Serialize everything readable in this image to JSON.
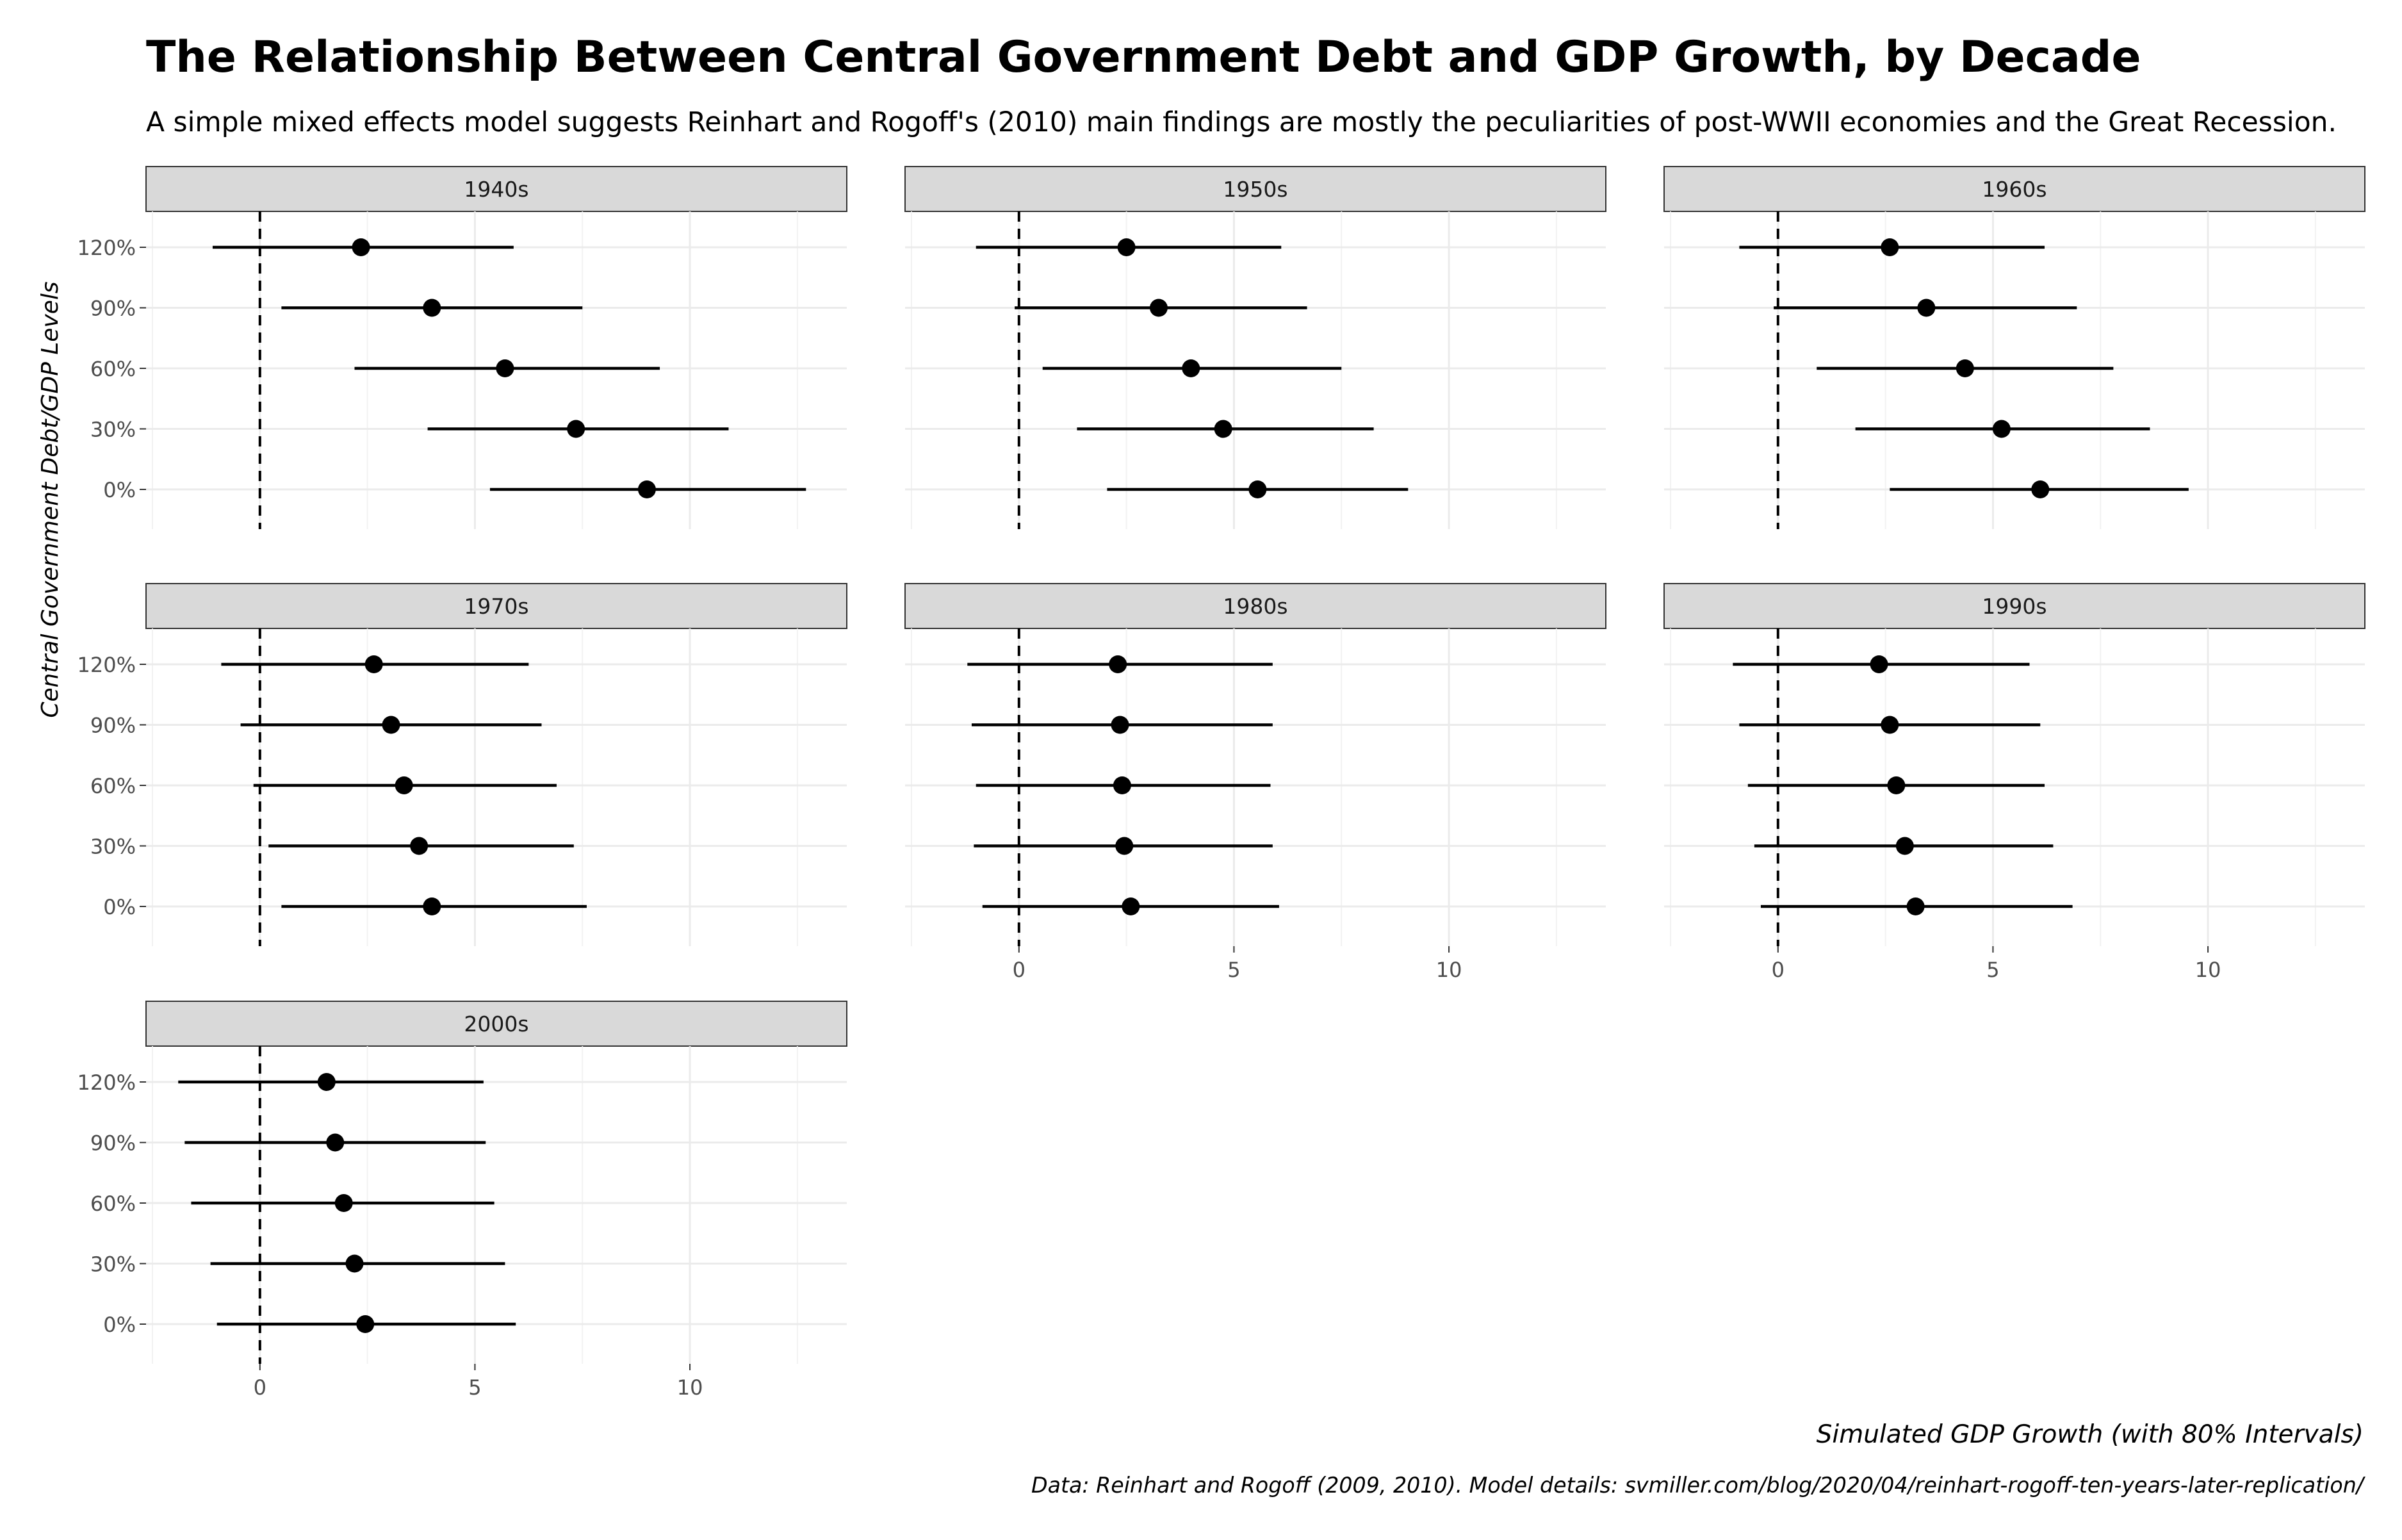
{
  "title": "The Relationship Between Central Government Debt and GDP Growth, by Decade",
  "subtitle": "A simple mixed effects model suggests Reinhart and Rogoff's (2010) main findings are mostly the peculiarities of post-WWII economies and the Great Recession.",
  "ylabel": "Central Government Debt/GDP Levels",
  "xlabel": "Simulated GDP Growth (with 80% Intervals)",
  "caption": "Data: Reinhart and Rogoff (2009, 2010). Model details: svmiller.com/blog/2020/04/reinhart-rogoff-ten-years-later-replication/",
  "chart_data": {
    "type": "scatter",
    "title": "The Relationship Between Central Government Debt and GDP Growth, by Decade",
    "subtitle": "A simple mixed effects model suggests Reinhart and Rogoff's (2010) main findings are mostly the peculiarities of post-WWII economies and the Great Recession.",
    "xlabel": "Simulated GDP Growth (with 80% Intervals)",
    "ylabel": "Central Government Debt/GDP Levels",
    "caption": "Data: Reinhart and Rogoff (2009, 2010). Model details: svmiller.com/blog/2020/04/reinhart-rogoff-ten-years-later-replication/",
    "xlim": [
      -2.5,
      13.5
    ],
    "x_ticks": [
      0,
      5,
      10
    ],
    "x_tick_labels": [
      "0",
      "5",
      "10"
    ],
    "categories": [
      "120%",
      "90%",
      "60%",
      "30%",
      "0%"
    ],
    "reference_line_x": 0,
    "grid": true,
    "facets": [
      {
        "label": "1940s",
        "rows": [
          {
            "level": "120%",
            "estimate": 2.35,
            "lower": -1.1,
            "upper": 5.9
          },
          {
            "level": "90%",
            "estimate": 4.0,
            "lower": 0.5,
            "upper": 7.5
          },
          {
            "level": "60%",
            "estimate": 5.7,
            "lower": 2.2,
            "upper": 9.3
          },
          {
            "level": "30%",
            "estimate": 7.35,
            "lower": 3.9,
            "upper": 10.9
          },
          {
            "level": "0%",
            "estimate": 9.0,
            "lower": 5.35,
            "upper": 12.7
          }
        ]
      },
      {
        "label": "1950s",
        "rows": [
          {
            "level": "120%",
            "estimate": 2.5,
            "lower": -1.0,
            "upper": 6.1
          },
          {
            "level": "90%",
            "estimate": 3.25,
            "lower": -0.1,
            "upper": 6.7
          },
          {
            "level": "60%",
            "estimate": 4.0,
            "lower": 0.55,
            "upper": 7.5
          },
          {
            "level": "30%",
            "estimate": 4.75,
            "lower": 1.35,
            "upper": 8.25
          },
          {
            "level": "0%",
            "estimate": 5.55,
            "lower": 2.05,
            "upper": 9.05
          }
        ]
      },
      {
        "label": "1960s",
        "rows": [
          {
            "level": "120%",
            "estimate": 2.6,
            "lower": -0.9,
            "upper": 6.2
          },
          {
            "level": "90%",
            "estimate": 3.45,
            "lower": -0.1,
            "upper": 6.95
          },
          {
            "level": "60%",
            "estimate": 4.35,
            "lower": 0.9,
            "upper": 7.8
          },
          {
            "level": "30%",
            "estimate": 5.2,
            "lower": 1.8,
            "upper": 8.65
          },
          {
            "level": "0%",
            "estimate": 6.1,
            "lower": 2.6,
            "upper": 9.55
          }
        ]
      },
      {
        "label": "1970s",
        "rows": [
          {
            "level": "120%",
            "estimate": 2.65,
            "lower": -0.9,
            "upper": 6.25
          },
          {
            "level": "90%",
            "estimate": 3.05,
            "lower": -0.45,
            "upper": 6.55
          },
          {
            "level": "60%",
            "estimate": 3.35,
            "lower": -0.15,
            "upper": 6.9
          },
          {
            "level": "30%",
            "estimate": 3.7,
            "lower": 0.2,
            "upper": 7.3
          },
          {
            "level": "0%",
            "estimate": 4.0,
            "lower": 0.5,
            "upper": 7.6
          }
        ]
      },
      {
        "label": "1980s",
        "rows": [
          {
            "level": "120%",
            "estimate": 2.3,
            "lower": -1.2,
            "upper": 5.9
          },
          {
            "level": "90%",
            "estimate": 2.35,
            "lower": -1.1,
            "upper": 5.9
          },
          {
            "level": "60%",
            "estimate": 2.4,
            "lower": -1.0,
            "upper": 5.85
          },
          {
            "level": "30%",
            "estimate": 2.45,
            "lower": -1.05,
            "upper": 5.9
          },
          {
            "level": "0%",
            "estimate": 2.6,
            "lower": -0.85,
            "upper": 6.05
          }
        ]
      },
      {
        "label": "1990s",
        "rows": [
          {
            "level": "120%",
            "estimate": 2.35,
            "lower": -1.05,
            "upper": 5.85
          },
          {
            "level": "90%",
            "estimate": 2.6,
            "lower": -0.9,
            "upper": 6.1
          },
          {
            "level": "60%",
            "estimate": 2.75,
            "lower": -0.7,
            "upper": 6.2
          },
          {
            "level": "30%",
            "estimate": 2.95,
            "lower": -0.55,
            "upper": 6.4
          },
          {
            "level": "0%",
            "estimate": 3.2,
            "lower": -0.4,
            "upper": 6.85
          }
        ]
      },
      {
        "label": "2000s",
        "rows": [
          {
            "level": "120%",
            "estimate": 1.55,
            "lower": -1.9,
            "upper": 5.2
          },
          {
            "level": "90%",
            "estimate": 1.75,
            "lower": -1.75,
            "upper": 5.25
          },
          {
            "level": "60%",
            "estimate": 1.95,
            "lower": -1.6,
            "upper": 5.45
          },
          {
            "level": "30%",
            "estimate": 2.2,
            "lower": -1.15,
            "upper": 5.7
          },
          {
            "level": "0%",
            "estimate": 2.45,
            "lower": -1.0,
            "upper": 5.95
          }
        ]
      }
    ]
  }
}
